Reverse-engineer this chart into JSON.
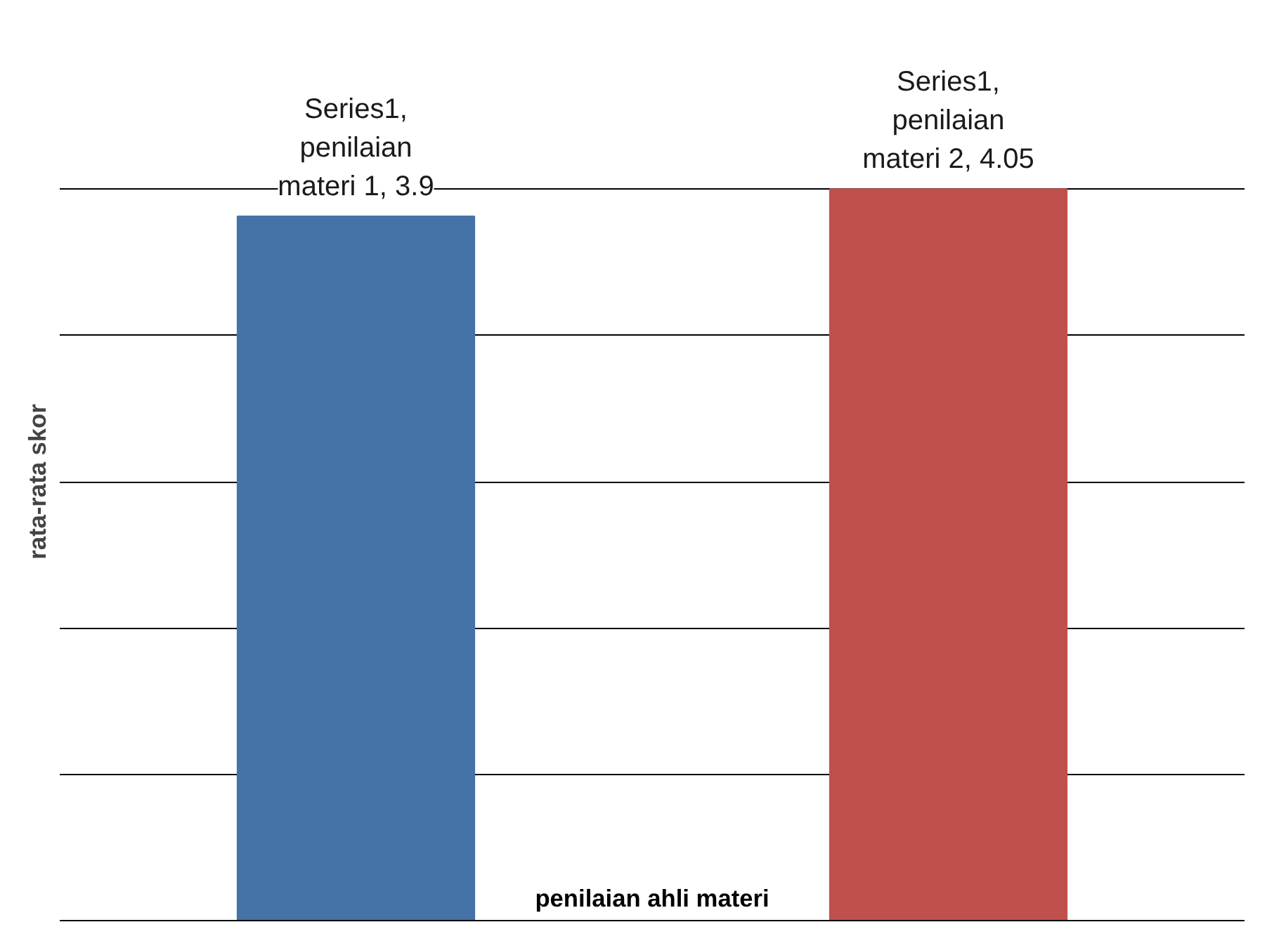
{
  "chart_data": {
    "type": "bar",
    "xlabel": "penilaian ahli materi",
    "ylabel": "rata-rata skor",
    "categories": [
      null,
      null
    ],
    "values": [
      3.9,
      4.05
    ],
    "colors": [
      "#4572a7",
      "#c0504d"
    ],
    "value_labels": [
      "Series1, penilaian materi 1, 3.9",
      "Series1, penilaian materi 2, 4.05"
    ],
    "grid": "y",
    "tick_labels": false
  }
}
